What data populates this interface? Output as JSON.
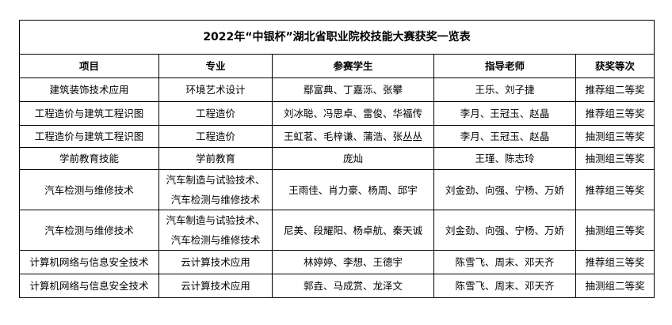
{
  "title": "2022年“中银杯”湖北省职业院校技能大赛获奖一览表",
  "columns": [
    "项目",
    "专业",
    "参赛学生",
    "指导老师",
    "获奖等次"
  ],
  "rows": [
    {
      "project": "建筑装饰技术应用",
      "major": [
        "环境艺术设计"
      ],
      "students": "鄢富典、丁嘉泺、张攀",
      "teachers": "王乐、刘子捷",
      "award": "推荐组二等奖"
    },
    {
      "project": "工程造价与建筑工程识图",
      "major": [
        "工程造价"
      ],
      "students": "刘冰聪、冯思卓、雷俊、华福传",
      "teachers": "李月、王冠玉、赵晶",
      "award": "推荐组三等奖"
    },
    {
      "project": "工程造价与建筑工程识图",
      "major": [
        "工程造价"
      ],
      "students": "王虹茗、毛梓谦、蒲浩、张丛丛",
      "teachers": "李月、王冠玉、赵晶",
      "award": "抽测组三等奖"
    },
    {
      "project": "学前教育技能",
      "major": [
        "学前教育"
      ],
      "students": "庞灿",
      "teachers": "王瑾、陈志玲",
      "award": "抽测组三等奖"
    },
    {
      "project": "汽车检测与维修技术",
      "major": [
        "汽车制造与试验技术、",
        "汽车检测与维修技术"
      ],
      "students": "王雨佳、肖力豪、杨周、邱宇",
      "teachers": "刘金劲、向强、宁杨、万娇",
      "award": "推荐组三等奖"
    },
    {
      "project": "汽车检测与维修技术",
      "major": [
        "汽车制造与试验技术、",
        "汽车检测与维修技术"
      ],
      "students": "尼美、段耀阳、杨卓航、秦天诚",
      "teachers": "刘金劲、向强、宁杨、万娇",
      "award": "抽测组三等奖"
    },
    {
      "project": "计算机网络与信息安全技术",
      "major": [
        "云计算技术应用"
      ],
      "students": "林婷婷、李想、王德宇",
      "teachers": "陈雪飞、周末、邓天齐",
      "award": "推荐组三等奖"
    },
    {
      "project": "计算机网络与信息安全技术",
      "major": [
        "云计算技术应用"
      ],
      "students": "郭垚、马成赏、龙泽文",
      "teachers": "陈雪飞、周末、邓天齐",
      "award": "抽测组二等奖"
    }
  ]
}
